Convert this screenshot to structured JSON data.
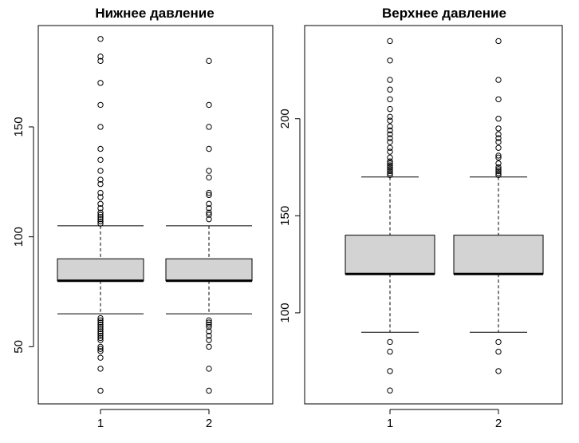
{
  "chart_data": [
    {
      "type": "boxplot",
      "title": "Нижнее давление",
      "xlabel": "",
      "ylabel": "",
      "categories": [
        "1",
        "2"
      ],
      "yticks": [
        50,
        100,
        150
      ],
      "ylim": [
        30,
        190
      ],
      "boxes": [
        {
          "name": "1",
          "whisker_low": 65,
          "q1": 80,
          "median": 80,
          "q3": 90,
          "whisker_high": 105,
          "outliers": [
            190,
            182,
            180,
            170,
            160,
            150,
            140,
            135,
            130,
            126,
            124,
            120,
            118,
            115,
            113,
            111,
            110,
            109,
            108,
            107,
            106,
            63,
            62,
            61,
            60,
            59,
            58,
            57,
            56,
            55,
            54,
            53,
            50,
            49,
            48,
            45,
            40,
            30
          ]
        },
        {
          "name": "2",
          "whisker_low": 65,
          "q1": 80,
          "median": 80,
          "q3": 90,
          "whisker_high": 105,
          "outliers": [
            180,
            160,
            150,
            140,
            130,
            127,
            120,
            119,
            115,
            113,
            111,
            110,
            108,
            62,
            61,
            60,
            59,
            57,
            55,
            53,
            50,
            40,
            30
          ]
        }
      ]
    },
    {
      "type": "boxplot",
      "title": "Верхнее давление",
      "xlabel": "",
      "ylabel": "",
      "categories": [
        "1",
        "2"
      ],
      "yticks": [
        100,
        150,
        200
      ],
      "ylim": [
        60,
        240
      ],
      "boxes": [
        {
          "name": "1",
          "whisker_low": 90,
          "q1": 120,
          "median": 120,
          "q3": 140,
          "whisker_high": 170,
          "outliers": [
            240,
            230,
            220,
            215,
            210,
            205,
            201,
            199,
            196,
            194,
            192,
            190,
            188,
            185,
            183,
            180,
            178,
            177,
            176,
            175,
            174,
            173,
            172,
            171,
            85,
            80,
            70,
            60
          ]
        },
        {
          "name": "2",
          "whisker_low": 90,
          "q1": 120,
          "median": 120,
          "q3": 140,
          "whisker_high": 170,
          "outliers": [
            240,
            220,
            210,
            200,
            195,
            192,
            190,
            188,
            185,
            181,
            180,
            177,
            175,
            174,
            173,
            172,
            171,
            85,
            80,
            70
          ]
        }
      ]
    }
  ]
}
